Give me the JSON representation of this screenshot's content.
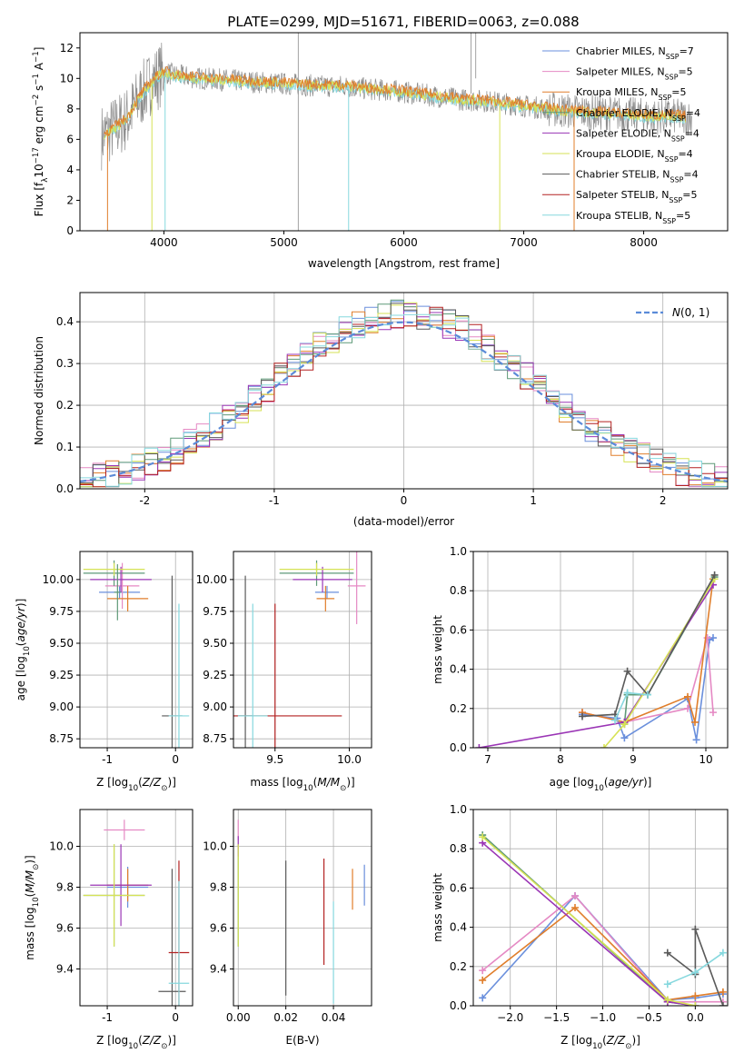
{
  "figure": {
    "title": "PLATE=0299, MJD=51671, FIBERID=0063, z=0.088"
  },
  "colors": {
    "chabrier_miles": "#6a8fdc",
    "salpeter_miles": "#e589c4",
    "kroupa_miles": "#e07e2b",
    "chabrier_elodie": "#5f9a78",
    "salpeter_elodie": "#9a35b5",
    "kroupa_elodie": "#d6e254",
    "chabrier_stelib": "#5a5a5a",
    "salpeter_stelib": "#b32121",
    "kroupa_stelib": "#86d8de",
    "gaussian": "#5b8bd8",
    "grid": "#b0b0b0"
  },
  "chart_data": [
    {
      "id": "spectrum",
      "type": "line",
      "xlabel": "wavelength [Angstrom, rest frame]",
      "ylabel": "Flux [f_λ 10^-17 erg cm^-2 s^-1 A^-1]",
      "xlim": [
        3300,
        8700
      ],
      "ylim": [
        0,
        13
      ],
      "xticks": [
        4000,
        5000,
        6000,
        7000,
        8000
      ],
      "yticks": [
        0,
        2,
        4,
        6,
        8,
        10,
        12
      ],
      "grid": false,
      "legend_position": "top-right",
      "legend": [
        {
          "label": "Chabrier MILES, N",
          "sub": "SSP",
          "eq": "=7",
          "color": "#6a8fdc"
        },
        {
          "label": "Salpeter MILES, N",
          "sub": "SSP",
          "eq": "=5",
          "color": "#e589c4"
        },
        {
          "label": "Kroupa MILES, N",
          "sub": "SSP",
          "eq": "=5",
          "color": "#e07e2b"
        },
        {
          "label": "Chabrier ELODIE, N",
          "sub": "SSP",
          "eq": "=4",
          "color": "#5f9a78"
        },
        {
          "label": "Salpeter ELODIE, N",
          "sub": "SSP",
          "eq": "=4",
          "color": "#9a35b5"
        },
        {
          "label": "Kroupa ELODIE, N",
          "sub": "SSP",
          "eq": "=4",
          "color": "#d6e254"
        },
        {
          "label": "Chabrier STELIB, N",
          "sub": "SSP",
          "eq": "=4",
          "color": "#5a5a5a"
        },
        {
          "label": "Salpeter STELIB, N",
          "sub": "SSP",
          "eq": "=5",
          "color": "#b32121"
        },
        {
          "label": "Kroupa STELIB, N",
          "sub": "SSP",
          "eq": "=5",
          "color": "#86d8de"
        }
      ],
      "continuum": {
        "x": [
          3450,
          3600,
          3700,
          3800,
          3900,
          4000,
          4100,
          4300,
          4500,
          4700,
          4900,
          5100,
          5300,
          5500,
          5700,
          5900,
          6100,
          6300,
          6500,
          6700,
          6900,
          7100,
          7300,
          7500,
          7700,
          7900,
          8100,
          8300,
          8400
        ],
        "y": [
          6.0,
          6.8,
          7.4,
          8.8,
          9.8,
          10.4,
          10.2,
          10.0,
          9.9,
          9.8,
          9.7,
          9.6,
          9.5,
          9.5,
          9.3,
          9.2,
          9.0,
          8.8,
          8.6,
          8.5,
          8.3,
          8.1,
          7.9,
          7.8,
          7.7,
          7.6,
          7.5,
          7.5,
          7.4
        ]
      }
    },
    {
      "id": "residuals",
      "type": "line",
      "xlabel": "(data-model)/error",
      "ylabel": "Normed distribution",
      "xlim": [
        -2.5,
        2.5
      ],
      "ylim": [
        0,
        0.47
      ],
      "xticks": [
        -2,
        -1,
        0,
        1,
        2
      ],
      "yticks": [
        0.0,
        0.1,
        0.2,
        0.3,
        0.4
      ],
      "grid": true,
      "legend_position": "top-right",
      "legend_label": "N(0, 1)",
      "bin_width": 0.1,
      "bin_start": -2.5
    },
    {
      "id": "age_vs_Z",
      "type": "scatter",
      "xlabel": "Z [log10(Z/Z☉)]",
      "ylabel": "age  [log10(age/yr)]",
      "xlim": [
        -1.4,
        0.25
      ],
      "ylim": [
        8.68,
        10.22
      ],
      "xticks": [
        -1,
        0
      ],
      "yticks": [
        8.75,
        9.0,
        9.25,
        9.5,
        9.75,
        10.0
      ],
      "grid": true,
      "points": [
        {
          "x": -0.82,
          "y": 9.9,
          "xerr": 0.3,
          "yerr": 0.05,
          "color": "#6a8fdc"
        },
        {
          "x": -0.78,
          "y": 9.95,
          "xerr": 0.25,
          "yerr": 0.18,
          "color": "#e589c4"
        },
        {
          "x": -0.7,
          "y": 9.85,
          "xerr": 0.3,
          "yerr": 0.1,
          "color": "#e07e2b"
        },
        {
          "x": -0.9,
          "y": 10.05,
          "xerr": 0.45,
          "yerr": 0.1,
          "color": "#5f9a78"
        },
        {
          "x": -0.8,
          "y": 10.0,
          "xerr": 0.45,
          "yerr": 0.1,
          "color": "#9a35b5"
        },
        {
          "x": -0.9,
          "y": 10.08,
          "xerr": 0.45,
          "yerr": 0.05,
          "color": "#d6e254"
        },
        {
          "x": -0.05,
          "y": 8.93,
          "xerr": 0.15,
          "yerr": 1.1,
          "color": "#5a5a5a"
        },
        {
          "x": -0.85,
          "y": 9.9,
          "xerr": 0.05,
          "yerr": 0.22,
          "color": "#5f9a78"
        },
        {
          "x": 0.05,
          "y": 8.93,
          "xerr": 0.15,
          "yerr": 0.88,
          "color": "#86d8de"
        }
      ]
    },
    {
      "id": "age_vs_mass",
      "type": "scatter",
      "xlabel": "mass [log10(M/M☉)]",
      "ylabel": "",
      "xlim": [
        9.22,
        10.15
      ],
      "ylim": [
        8.68,
        10.22
      ],
      "xticks": [
        9.5,
        10.0
      ],
      "yticks": [
        8.75,
        9.0,
        9.25,
        9.5,
        9.75,
        10.0
      ],
      "grid": true,
      "points": [
        {
          "x": 9.85,
          "y": 9.9,
          "xerr": 0.08,
          "yerr": 0.05,
          "color": "#6a8fdc"
        },
        {
          "x": 10.05,
          "y": 9.95,
          "xerr": 0.06,
          "yerr": 0.3,
          "color": "#e589c4"
        },
        {
          "x": 9.84,
          "y": 9.85,
          "xerr": 0.06,
          "yerr": 0.1,
          "color": "#e07e2b"
        },
        {
          "x": 9.78,
          "y": 10.05,
          "xerr": 0.25,
          "yerr": 0.1,
          "color": "#5f9a78"
        },
        {
          "x": 9.82,
          "y": 10.0,
          "xerr": 0.2,
          "yerr": 0.1,
          "color": "#9a35b5"
        },
        {
          "x": 9.78,
          "y": 10.08,
          "xerr": 0.25,
          "yerr": 0.05,
          "color": "#d6e254"
        },
        {
          "x": 9.3,
          "y": 8.93,
          "xerr": 0.05,
          "yerr": 1.1,
          "color": "#5a5a5a"
        },
        {
          "x": 9.5,
          "y": 8.93,
          "xerr": 0.45,
          "yerr": 0.88,
          "color": "#b32121"
        },
        {
          "x": 9.35,
          "y": 8.93,
          "xerr": 0.1,
          "yerr": 0.88,
          "color": "#86d8de"
        }
      ]
    },
    {
      "id": "mass_weight_vs_age",
      "type": "line",
      "xlabel": "age  [log10(age/yr)]",
      "ylabel": "mass weight",
      "xlim": [
        6.8,
        10.3
      ],
      "ylim": [
        0,
        1.0
      ],
      "xticks": [
        7,
        8,
        9,
        10
      ],
      "yticks": [
        0.0,
        0.2,
        0.4,
        0.6,
        0.8,
        1.0
      ],
      "grid": true,
      "series": [
        {
          "color": "#6a8fdc",
          "x": [
            8.3,
            8.78,
            8.88,
            9.75,
            9.87,
            10.05,
            10.1
          ],
          "y": [
            0.17,
            0.15,
            0.05,
            0.25,
            0.04,
            0.55,
            0.56
          ]
        },
        {
          "color": "#e589c4",
          "x": [
            8.3,
            8.88,
            9.75,
            10.02,
            10.1
          ],
          "y": [
            0.18,
            0.13,
            0.2,
            0.56,
            0.18
          ]
        },
        {
          "color": "#e07e2b",
          "x": [
            8.3,
            8.88,
            9.75,
            9.85,
            10.1
          ],
          "y": [
            0.18,
            0.13,
            0.26,
            0.13,
            0.86
          ]
        },
        {
          "color": "#5f9a78",
          "x": [
            8.88,
            8.92,
            9.2,
            10.12
          ],
          "y": [
            0.12,
            0.27,
            0.27,
            0.87
          ]
        },
        {
          "color": "#9a35b5",
          "x": [
            6.88,
            8.88,
            10.1
          ],
          "y": [
            0.0,
            0.13,
            0.83
          ]
        },
        {
          "color": "#d6e254",
          "x": [
            8.6,
            8.88,
            10.12
          ],
          "y": [
            0.0,
            0.12,
            0.86
          ]
        },
        {
          "color": "#5a5a5a",
          "x": [
            8.3,
            8.75,
            8.92,
            9.2,
            10.12
          ],
          "y": [
            0.16,
            0.17,
            0.39,
            0.27,
            0.88
          ]
        },
        {
          "color": "#86d8de",
          "x": [
            8.75,
            8.92,
            9.2
          ],
          "y": [
            0.14,
            0.28,
            0.27
          ]
        }
      ]
    },
    {
      "id": "mass_vs_Z",
      "type": "scatter",
      "xlabel": "Z [log10(Z/Z☉)]",
      "ylabel": "mass [log10(M/M☉)]",
      "xlim": [
        -1.4,
        0.25
      ],
      "ylim": [
        9.22,
        10.18
      ],
      "xticks": [
        -1,
        0
      ],
      "yticks": [
        9.4,
        9.6,
        9.8,
        10.0
      ],
      "grid": true,
      "points": [
        {
          "x": -0.7,
          "y": 9.8,
          "xerr": 0.3,
          "yerr": 0.1,
          "color": "#6a8fdc"
        },
        {
          "x": -0.75,
          "y": 10.08,
          "xerr": 0.3,
          "yerr": 0.05,
          "color": "#e589c4"
        },
        {
          "x": -0.7,
          "y": 9.81,
          "xerr": 0.3,
          "yerr": 0.08,
          "color": "#e07e2b"
        },
        {
          "x": -0.9,
          "y": 9.76,
          "xerr": 0.45,
          "yerr": 0.25,
          "color": "#5f9a78"
        },
        {
          "x": -0.8,
          "y": 9.81,
          "xerr": 0.45,
          "yerr": 0.2,
          "color": "#9a35b5"
        },
        {
          "x": -0.9,
          "y": 9.76,
          "xerr": 0.45,
          "yerr": 0.25,
          "color": "#d6e254"
        },
        {
          "x": -0.05,
          "y": 9.29,
          "xerr": 0.2,
          "yerr": 0.6,
          "color": "#5a5a5a"
        },
        {
          "x": 0.05,
          "y": 9.48,
          "xerr": 0.15,
          "yerr": 0.45,
          "color": "#b32121"
        },
        {
          "x": 0.05,
          "y": 9.33,
          "xerr": 0.15,
          "yerr": 0.5,
          "color": "#86d8de"
        }
      ]
    },
    {
      "id": "mass_vs_ebv",
      "type": "scatter",
      "xlabel": "E(B-V)",
      "ylabel": "",
      "xlim": [
        -0.002,
        0.056
      ],
      "ylim": [
        9.22,
        10.18
      ],
      "xticks": [
        0.0,
        0.02,
        0.04
      ],
      "yticks": [
        9.4,
        9.6,
        9.8,
        10.0
      ],
      "xtick_labels": [
        "0.00",
        "0.02",
        "0.04"
      ],
      "grid": true,
      "points": [
        {
          "x": 0.053,
          "y": 9.81,
          "xerr": 0.0,
          "yerr": 0.1,
          "color": "#6a8fdc"
        },
        {
          "x": 0.0,
          "y": 10.08,
          "xerr": 0.0,
          "yerr": 0.05,
          "color": "#e589c4"
        },
        {
          "x": 0.048,
          "y": 9.79,
          "xerr": 0.0,
          "yerr": 0.1,
          "color": "#e07e2b"
        },
        {
          "x": 0.0,
          "y": 9.76,
          "xerr": 0.0,
          "yerr": 0.25,
          "color": "#5f9a78"
        },
        {
          "x": 0.0,
          "y": 10.0,
          "xerr": 0.0,
          "yerr": 0.05,
          "color": "#9a35b5"
        },
        {
          "x": 0.0,
          "y": 9.76,
          "xerr": 0.0,
          "yerr": 0.25,
          "color": "#d6e254"
        },
        {
          "x": 0.02,
          "y": 9.6,
          "xerr": 0.0,
          "yerr": 0.33,
          "color": "#5a5a5a"
        },
        {
          "x": 0.036,
          "y": 9.68,
          "xerr": 0.0,
          "yerr": 0.26,
          "color": "#b32121"
        },
        {
          "x": 0.04,
          "y": 9.48,
          "xerr": 0.0,
          "yerr": 0.25,
          "color": "#86d8de"
        }
      ]
    },
    {
      "id": "mass_weight_vs_Z",
      "type": "line",
      "xlabel": "Z [log10(Z/Z☉)]",
      "ylabel": "mass weight",
      "xlim": [
        -2.4,
        0.35
      ],
      "ylim": [
        0,
        1.0
      ],
      "xticks": [
        -2.0,
        -1.5,
        -1.0,
        -0.5,
        0.0
      ],
      "yticks": [
        0.0,
        0.2,
        0.4,
        0.6,
        0.8,
        1.0
      ],
      "grid": true,
      "series": [
        {
          "color": "#6a8fdc",
          "x": [
            -2.3,
            -1.3,
            -0.3,
            0.0,
            0.3
          ],
          "y": [
            0.04,
            0.56,
            0.03,
            0.04,
            0.06
          ]
        },
        {
          "color": "#e589c4",
          "x": [
            -2.3,
            -1.3,
            -0.3,
            0.3
          ],
          "y": [
            0.18,
            0.56,
            0.02,
            0.02
          ]
        },
        {
          "color": "#e07e2b",
          "x": [
            -2.3,
            -1.3,
            -0.3,
            0.0,
            0.3
          ],
          "y": [
            0.13,
            0.5,
            0.03,
            0.05,
            0.07
          ]
        },
        {
          "color": "#5f9a78",
          "x": [
            -2.3,
            -0.3,
            0.0
          ],
          "y": [
            0.87,
            0.02,
            0.0
          ]
        },
        {
          "color": "#9a35b5",
          "x": [
            -2.3,
            -0.3,
            0.0
          ],
          "y": [
            0.83,
            0.02,
            0.0
          ]
        },
        {
          "color": "#d6e254",
          "x": [
            -2.3,
            -0.3,
            0.0
          ],
          "y": [
            0.86,
            0.03,
            0.0
          ]
        },
        {
          "color": "#5a5a5a",
          "x": [
            -0.3,
            0.0,
            0.0,
            0.3
          ],
          "y": [
            0.27,
            0.16,
            0.39,
            0.0
          ]
        },
        {
          "color": "#86d8de",
          "x": [
            -0.3,
            0.0,
            0.3
          ],
          "y": [
            0.11,
            0.17,
            0.27
          ]
        }
      ]
    }
  ]
}
